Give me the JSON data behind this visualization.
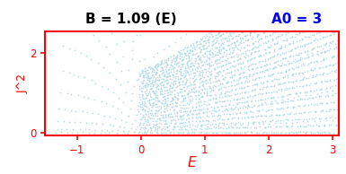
{
  "title_left": "B = 1.09 (E)",
  "title_right": "A0 = 3",
  "xlabel": "E",
  "ylabel": "J^2",
  "xlim": [
    -1.5,
    3.1
  ],
  "ylim": [
    -0.08,
    2.55
  ],
  "xticks": [
    -1,
    0,
    1,
    2,
    3
  ],
  "yticks": [
    0,
    2
  ],
  "dot_color": "#add8e6",
  "axis_color": "red",
  "title_color": "black",
  "title_right_color": "blue",
  "background": "white",
  "B": 1.09,
  "A0": 3.0,
  "N": 20
}
